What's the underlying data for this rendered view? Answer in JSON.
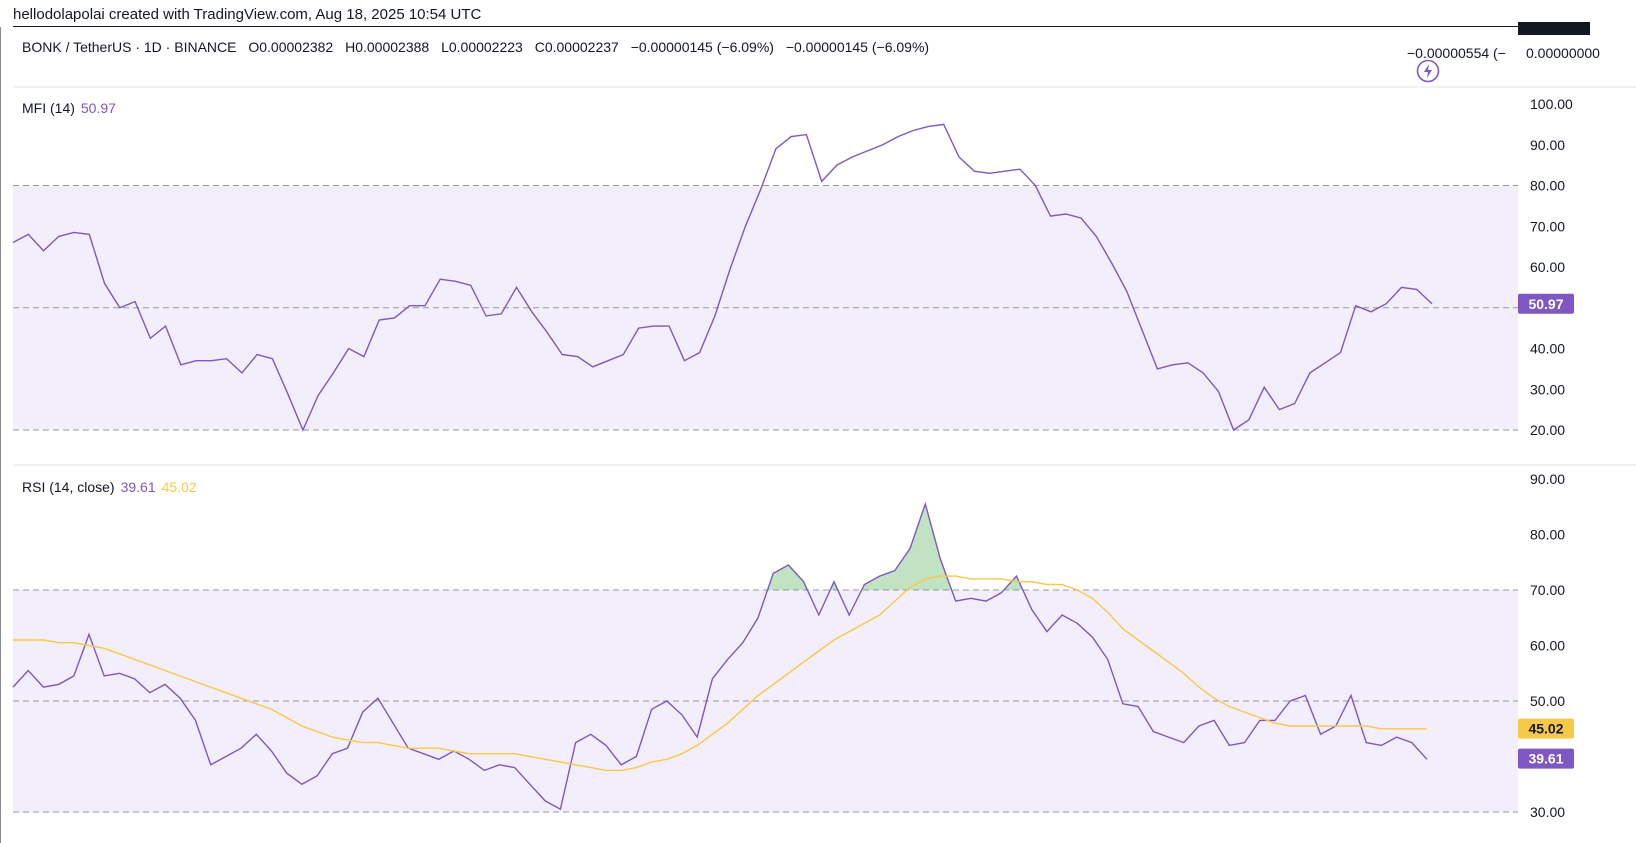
{
  "attribution": "hellodolapolai created with TradingView.com, Aug 18, 2025 10:54 UTC",
  "legend": {
    "symbol": "BONK / TetherUS · 1D · BINANCE",
    "open": "O0.00002382",
    "high": "H0.00002388",
    "low": "L0.00002223",
    "close": "C0.00002237",
    "change1": "−0.00000145 (−6.09%)",
    "change2": "−0.00000145 (−6.09%)",
    "right_change": "−0.00000554 (−",
    "price_scale_value": "0.00000000"
  },
  "colors": {
    "mfi_line": "#7e57c2",
    "rsi_line": "#7e57c2",
    "rsi_ma": "#f7c948",
    "band_fill": "#f3eefb",
    "overbought_fill": "#4caf50"
  },
  "chart_data": [
    {
      "type": "line",
      "title": "MFI (14)",
      "current_value_label": "50.97",
      "yticks": [
        "100.00",
        "90.00",
        "80.00",
        "70.00",
        "60.00",
        "50.00",
        "40.00",
        "30.00",
        "20.00"
      ],
      "ylim": [
        20,
        100
      ],
      "band": [
        20,
        80
      ],
      "levels": [
        80,
        50,
        20
      ],
      "series": [
        {
          "values": [
            66,
            68,
            64,
            67.5,
            68.5,
            68,
            56,
            50,
            51.5,
            42.5,
            45.5,
            36,
            37,
            37,
            37.5,
            34,
            38.5,
            37.5,
            29,
            20,
            28.5,
            34,
            40,
            38,
            47,
            47.5,
            50.5,
            50.5,
            57,
            56.5,
            55.5,
            48,
            48.5,
            55,
            49,
            44,
            38.5,
            38,
            35.5,
            37,
            38.5,
            45,
            45.5,
            45.5,
            37,
            39,
            48,
            59.5,
            70,
            79,
            89,
            92,
            92.5,
            81,
            85,
            87,
            88.5,
            90,
            92,
            93.5,
            94.5,
            95,
            87,
            83.5,
            83,
            83.5,
            84,
            80,
            72.5,
            73,
            72,
            67.5,
            61,
            54,
            44.5,
            35,
            36,
            36.5,
            34,
            29.5,
            20,
            22.5,
            30.5,
            25,
            26.5,
            34,
            36.5,
            39,
            50.5,
            49,
            51,
            55,
            54.5,
            51
          ]
        }
      ]
    },
    {
      "type": "line",
      "title": "RSI (14, close)",
      "current_value_label": "39.61",
      "ma_value_label": "45.02",
      "yticks": [
        "90.00",
        "80.00",
        "70.00",
        "60.00",
        "50.00",
        "30.00"
      ],
      "ylim": [
        30,
        90
      ],
      "band": [
        30,
        70
      ],
      "levels": [
        70,
        50,
        30
      ],
      "series": [
        {
          "values": [
            52.5,
            55.5,
            52.5,
            53,
            54.5,
            62,
            54.5,
            55,
            54,
            51.5,
            53,
            50.5,
            46.5,
            38.5,
            40,
            41.5,
            44,
            41,
            37,
            35,
            36.5,
            40.5,
            41.5,
            48,
            50.5,
            46,
            41.5,
            40.5,
            39.5,
            41,
            39.5,
            37.5,
            38.5,
            38,
            35,
            32,
            30.5,
            42.5,
            44,
            42,
            38.5,
            40,
            48.5,
            50,
            47.5,
            43.5,
            54,
            57.5,
            60.5,
            65,
            73,
            74.5,
            71.5,
            65.5,
            71.5,
            65.5,
            71,
            72.5,
            73.5,
            77.5,
            85.5,
            75.5,
            68,
            68.5,
            68,
            69.5,
            72.5,
            66.5,
            62.5,
            65.5,
            64,
            61.5,
            57.5,
            49.5,
            49,
            44.5,
            43.5,
            42.5,
            45.5,
            46.5,
            42,
            42.5,
            46.5,
            46.5,
            50,
            51,
            44,
            45.5,
            51,
            42.5,
            42,
            43.5,
            42.5,
            39.5
          ]
        },
        {
          "values": [
            61,
            61,
            61,
            60.5,
            60.5,
            60,
            59.5,
            58.5,
            57.5,
            56.5,
            55.5,
            54.5,
            53.5,
            52.5,
            51.5,
            50.5,
            49.5,
            48.5,
            47,
            45.5,
            44.5,
            43.5,
            43,
            42.5,
            42.5,
            42,
            41.5,
            41.5,
            41.5,
            41,
            40.5,
            40.5,
            40.5,
            40.5,
            40,
            39.5,
            39,
            38.5,
            38,
            37.5,
            37.5,
            38,
            39,
            39.5,
            40.5,
            42,
            44,
            46,
            48.5,
            51,
            53,
            55,
            57,
            59,
            61,
            62.5,
            64,
            65.5,
            68,
            70.5,
            72,
            72.5,
            72.5,
            72,
            72,
            72,
            71.5,
            71.5,
            71,
            71,
            70,
            68.5,
            66,
            63,
            61,
            59,
            57,
            55,
            52.5,
            50.5,
            49,
            48,
            47,
            46,
            45.5,
            45.5,
            45.5,
            45.5,
            45.5,
            45.5,
            45,
            45,
            45,
            45
          ]
        }
      ]
    }
  ]
}
